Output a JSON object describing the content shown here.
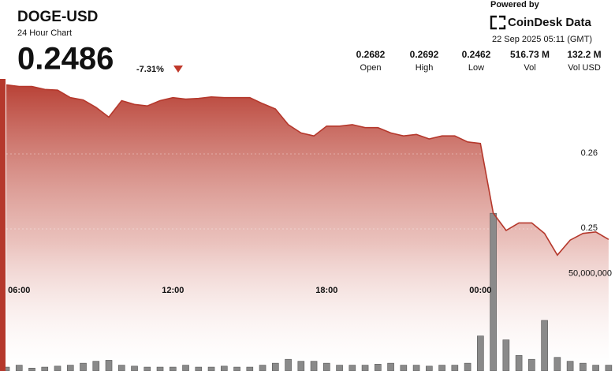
{
  "header": {
    "title": "DOGE-USD",
    "subtitle": "24 Hour Chart",
    "price": "0.2486",
    "change": "-7.31%",
    "stats": [
      {
        "value": "0.2682",
        "label": "Open"
      },
      {
        "value": "0.2692",
        "label": "High"
      },
      {
        "value": "0.2462",
        "label": "Low"
      },
      {
        "value": "516.73 M",
        "label": "Vol"
      },
      {
        "value": "132.2 M",
        "label": "Vol USD"
      }
    ]
  },
  "branding": {
    "powered": "Powered by",
    "logo": "CoinDesk Data",
    "timestamp": "22 Sep 2025 05:11 (GMT)"
  },
  "chart_data": {
    "type": "line",
    "x": [
      5.5,
      6,
      6.5,
      7,
      7.5,
      8,
      8.5,
      9,
      9.5,
      10,
      10.5,
      11,
      11.5,
      12,
      12.5,
      13,
      13.5,
      14,
      14.5,
      15,
      15.5,
      16,
      16.5,
      17,
      17.5,
      18,
      18.5,
      19,
      19.5,
      20,
      20.5,
      21,
      21.5,
      22,
      22.5,
      23,
      23.5,
      24,
      24.5,
      25,
      25.5,
      26,
      26.5,
      27,
      27.5,
      28,
      28.5,
      29
    ],
    "series": [
      {
        "name": "Price",
        "color": "#b5382c",
        "values": [
          0.2692,
          0.269,
          0.269,
          0.2686,
          0.2685,
          0.2675,
          0.2672,
          0.2662,
          0.2649,
          0.2671,
          0.2666,
          0.2664,
          0.2671,
          0.2675,
          0.2673,
          0.2674,
          0.2676,
          0.2675,
          0.2675,
          0.2675,
          0.2667,
          0.266,
          0.2639,
          0.2628,
          0.2624,
          0.2637,
          0.2637,
          0.2639,
          0.2635,
          0.2635,
          0.2628,
          0.2624,
          0.2626,
          0.262,
          0.2624,
          0.2624,
          0.2616,
          0.2614,
          0.2521,
          0.2498,
          0.2508,
          0.2508,
          0.2494,
          0.2465,
          0.2485,
          0.2494,
          0.2496,
          0.2486
        ]
      },
      {
        "name": "Volume",
        "color": "#8a8a8a",
        "axis": "y2",
        "values": [
          2000000,
          3000000,
          1500000,
          2000000,
          2500000,
          3000000,
          4000000,
          5000000,
          5500000,
          3000000,
          2500000,
          2000000,
          2000000,
          2000000,
          3000000,
          2000000,
          2000000,
          2500000,
          2000000,
          2000000,
          3000000,
          4000000,
          6000000,
          5000000,
          5000000,
          4000000,
          3000000,
          3000000,
          3000000,
          3500000,
          4000000,
          3000000,
          3000000,
          2500000,
          3000000,
          3000000,
          4000000,
          18000000,
          81000000,
          16000000,
          8000000,
          6000000,
          26000000,
          7000000,
          5000000,
          4000000,
          3000000,
          3000000
        ]
      }
    ],
    "xlim": [
      5.5,
      29.25
    ],
    "xticks": [
      {
        "value": 6,
        "label": "06:00"
      },
      {
        "value": 12,
        "label": "12:00"
      },
      {
        "value": 18,
        "label": "18:00"
      },
      {
        "value": 24,
        "label": "00:00"
      }
    ],
    "ylim": [
      0.23105,
      0.27
    ],
    "yticks": [
      0.25,
      0.26
    ],
    "y2lim": [
      0,
      150000000
    ],
    "y2ticks": [
      {
        "value": 50000000,
        "label": "50,000,000"
      }
    ],
    "grid": true
  }
}
